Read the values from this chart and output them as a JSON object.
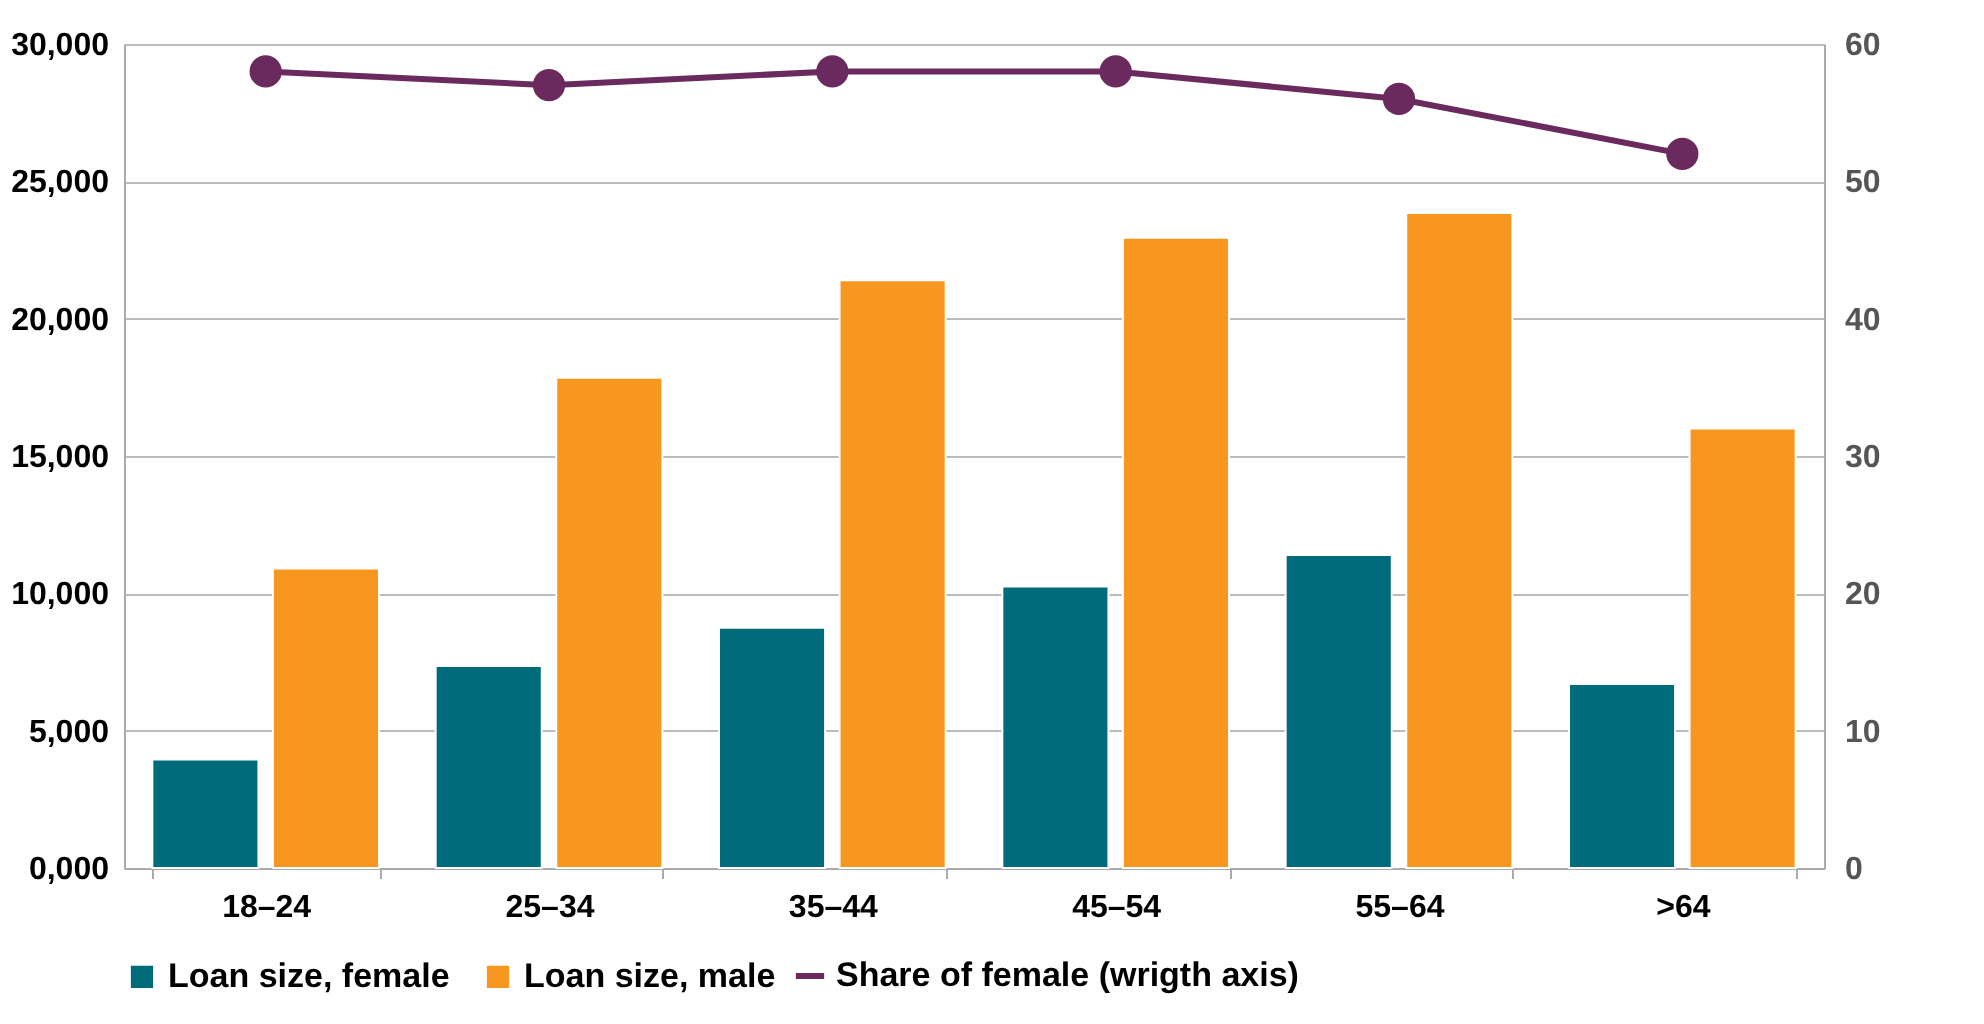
{
  "chart_data": {
    "type": "bar",
    "categories": [
      "18–24",
      "25–34",
      "35–44",
      "45–54",
      "55–64",
      ">64"
    ],
    "series": [
      {
        "name": "Loan size, female",
        "color": "#006b7a",
        "values": [
          3950,
          7350,
          8750,
          10250,
          11400,
          6700
        ]
      },
      {
        "name": "Loan size, male",
        "color": "#f7971f",
        "values": [
          10900,
          17850,
          21400,
          22950,
          23850,
          16000
        ]
      },
      {
        "name": "Share of female (wrigth axis)",
        "type": "line",
        "axis": "y2",
        "color": "#6b2a5e",
        "values": [
          58,
          57,
          58,
          58,
          56,
          52
        ]
      }
    ],
    "ylim": [
      0,
      30000
    ],
    "yticks": [
      {
        "value": 0,
        "label": "0,000"
      },
      {
        "value": 5000,
        "label": "5,000"
      },
      {
        "value": 10000,
        "label": "10,000"
      },
      {
        "value": 15000,
        "label": "15,000"
      },
      {
        "value": 20000,
        "label": "20,000"
      },
      {
        "value": 25000,
        "label": "25,000"
      },
      {
        "value": 30000,
        "label": "30,000"
      }
    ],
    "y2lim": [
      0,
      60
    ],
    "y2ticks": [
      0,
      10,
      20,
      30,
      40,
      50,
      60
    ],
    "grid": "y",
    "legend": "bottom",
    "marker": "circle"
  }
}
